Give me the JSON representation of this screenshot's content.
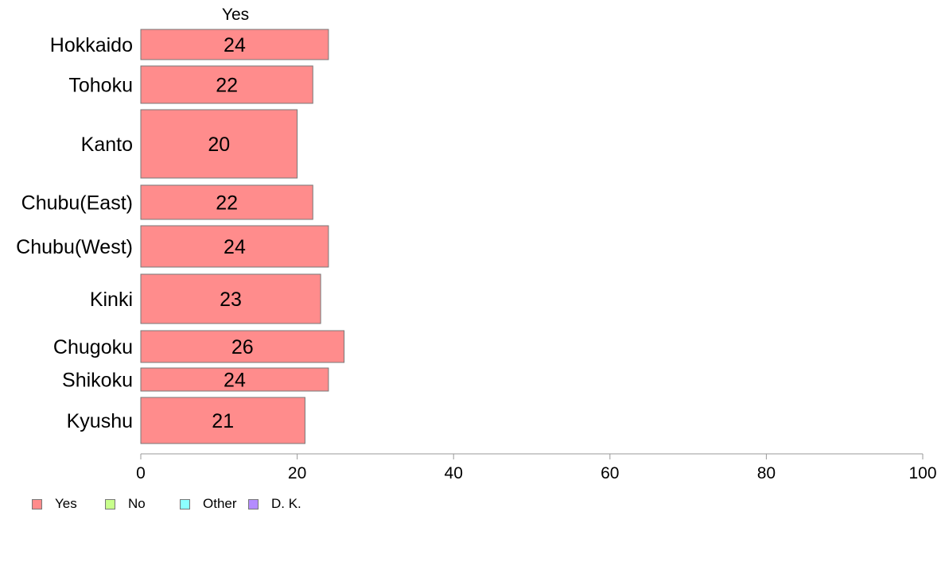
{
  "chart_data": {
    "type": "bar",
    "orientation": "horizontal",
    "column_header": "Yes",
    "categories": [
      "Hokkaido",
      "Tohoku",
      "Kanto",
      "Chubu(East)",
      "Chubu(West)",
      "Kinki",
      "Chugoku",
      "Shikoku",
      "Kyushu"
    ],
    "values": [
      24,
      22,
      20,
      22,
      24,
      23,
      26,
      24,
      21
    ],
    "data_labels": [
      "24",
      "22",
      "20",
      "22",
      "24",
      "23",
      "26",
      "24",
      "21"
    ],
    "xlim": [
      0,
      100
    ],
    "xticks": [
      "0",
      "20",
      "40",
      "60",
      "80",
      "100"
    ],
    "bar_color": "#ff8c8c",
    "legend": [
      {
        "label": "Yes",
        "color": "#ff8c8c"
      },
      {
        "label": "No",
        "color": "#c8ff8c"
      },
      {
        "label": "Other",
        "color": "#8cffff"
      },
      {
        "label": "D. K.",
        "color": "#b48cff"
      }
    ],
    "legend_position": "bottom-left",
    "grid": false
  }
}
